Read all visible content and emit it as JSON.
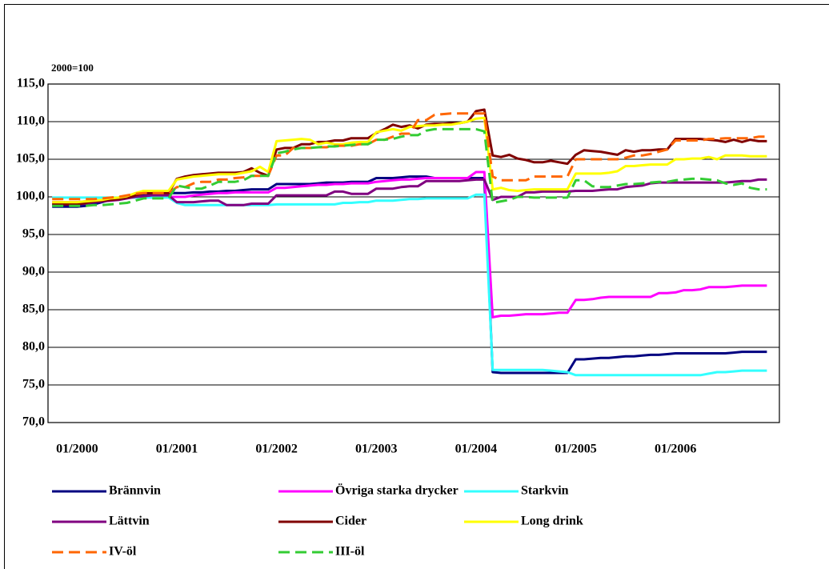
{
  "chart_data": {
    "type": "line",
    "axis_label": "2000=100",
    "categories": [
      null,
      null,
      null,
      "01/2000",
      null,
      null,
      null,
      null,
      null,
      null,
      null,
      null,
      null,
      null,
      null,
      "01/2001",
      null,
      null,
      null,
      null,
      null,
      null,
      null,
      null,
      null,
      null,
      null,
      "01/2002",
      null,
      null,
      null,
      null,
      null,
      null,
      null,
      null,
      null,
      null,
      null,
      "01/2003",
      null,
      null,
      null,
      null,
      null,
      null,
      null,
      null,
      null,
      null,
      null,
      "01/2004",
      null,
      null,
      null,
      null,
      null,
      null,
      null,
      null,
      null,
      null,
      null,
      "01/2005",
      null,
      null,
      null,
      null,
      null,
      null,
      null,
      null,
      null,
      null,
      null,
      "01/2006",
      null,
      null,
      null,
      null,
      null,
      null,
      null,
      null,
      null,
      null,
      null
    ],
    "ylim": [
      70,
      115
    ],
    "yticks": [
      {
        "value": 70,
        "label": "70,0"
      },
      {
        "value": 75,
        "label": "75,0"
      },
      {
        "value": 80,
        "label": "80,0"
      },
      {
        "value": 85,
        "label": "85,0"
      },
      {
        "value": 90,
        "label": "90,0"
      },
      {
        "value": 95,
        "label": "95,0"
      },
      {
        "value": 100,
        "label": "100,0"
      },
      {
        "value": 105,
        "label": "105,0"
      },
      {
        "value": 110,
        "label": "110,0"
      },
      {
        "value": 115,
        "label": "115,0"
      }
    ],
    "grid": true,
    "series": [
      {
        "name": "Brännvin",
        "color": "#000080",
        "style": "solid",
        "values": [
          98.7,
          98.7,
          98.7,
          98.7,
          98.8,
          99.0,
          99.3,
          99.6,
          99.9,
          100.1,
          100.2,
          100.3,
          100.4,
          100.5,
          100.5,
          100.5,
          100.5,
          100.6,
          100.6,
          100.7,
          100.7,
          100.8,
          100.8,
          100.9,
          101.0,
          101.0,
          101.0,
          101.7,
          101.7,
          101.7,
          101.7,
          101.7,
          101.8,
          101.9,
          101.9,
          101.9,
          102.0,
          102.0,
          102.0,
          102.5,
          102.5,
          102.5,
          102.6,
          102.7,
          102.7,
          102.7,
          102.5,
          102.5,
          102.5,
          102.5,
          102.5,
          102.5,
          102.5,
          76.7,
          76.6,
          76.6,
          76.6,
          76.6,
          76.6,
          76.6,
          76.6,
          76.6,
          76.6,
          78.4,
          78.4,
          78.5,
          78.6,
          78.6,
          78.7,
          78.8,
          78.8,
          78.9,
          79.0,
          79.0,
          79.1,
          79.2,
          79.2,
          79.2,
          79.2,
          79.2,
          79.2,
          79.2,
          79.3,
          79.4,
          79.4,
          79.4,
          79.4
        ]
      },
      {
        "name": "Övriga starka drycker",
        "color": "#ff00ff",
        "style": "solid",
        "values": [
          99.3,
          99.3,
          99.3,
          99.3,
          99.4,
          99.5,
          99.6,
          99.7,
          99.8,
          99.9,
          100.0,
          100.0,
          100.0,
          100.0,
          100.0,
          100.0,
          100.0,
          100.2,
          100.3,
          100.4,
          100.5,
          100.5,
          100.6,
          100.6,
          100.6,
          100.6,
          100.6,
          101.2,
          101.2,
          101.3,
          101.4,
          101.5,
          101.6,
          101.6,
          101.7,
          101.7,
          101.8,
          101.8,
          101.8,
          102.0,
          102.1,
          102.2,
          102.3,
          102.3,
          102.4,
          102.5,
          102.5,
          102.5,
          102.5,
          102.5,
          102.5,
          103.3,
          103.3,
          84.0,
          84.2,
          84.2,
          84.3,
          84.4,
          84.4,
          84.4,
          84.5,
          84.6,
          84.6,
          86.3,
          86.3,
          86.4,
          86.6,
          86.7,
          86.7,
          86.7,
          86.7,
          86.7,
          86.7,
          87.2,
          87.2,
          87.3,
          87.6,
          87.6,
          87.7,
          88.0,
          88.0,
          88.0,
          88.1,
          88.2,
          88.2,
          88.2,
          88.2
        ]
      },
      {
        "name": "Starkvin",
        "color": "#33ffff",
        "style": "solid",
        "values": [
          99.9,
          99.9,
          99.9,
          99.9,
          99.9,
          99.9,
          99.9,
          99.9,
          99.9,
          99.9,
          99.9,
          99.9,
          99.9,
          99.9,
          99.9,
          99.2,
          98.9,
          98.9,
          98.9,
          98.9,
          98.9,
          98.9,
          98.9,
          98.9,
          98.9,
          98.9,
          98.9,
          99.0,
          99.0,
          99.0,
          99.0,
          99.0,
          99.0,
          99.0,
          99.0,
          99.2,
          99.2,
          99.3,
          99.3,
          99.5,
          99.5,
          99.5,
          99.6,
          99.7,
          99.7,
          99.8,
          99.8,
          99.8,
          99.8,
          99.8,
          99.8,
          100.3,
          100.3,
          77.0,
          77.0,
          77.0,
          77.0,
          77.0,
          77.0,
          77.0,
          76.9,
          76.8,
          76.7,
          76.3,
          76.3,
          76.3,
          76.3,
          76.3,
          76.3,
          76.3,
          76.3,
          76.3,
          76.3,
          76.3,
          76.3,
          76.3,
          76.3,
          76.3,
          76.3,
          76.5,
          76.7,
          76.7,
          76.8,
          76.9,
          76.9,
          76.9,
          76.9
        ]
      },
      {
        "name": "Lättvin",
        "color": "#800080",
        "style": "solid",
        "values": [
          99.0,
          99.0,
          99.0,
          99.0,
          99.1,
          99.3,
          99.4,
          99.5,
          99.6,
          99.8,
          100.0,
          100.1,
          100.2,
          100.2,
          100.2,
          99.3,
          99.3,
          99.3,
          99.4,
          99.5,
          99.5,
          98.9,
          98.9,
          98.9,
          99.1,
          99.1,
          99.1,
          100.2,
          100.2,
          100.2,
          100.2,
          100.2,
          100.2,
          100.2,
          100.7,
          100.7,
          100.4,
          100.4,
          100.4,
          101.1,
          101.1,
          101.1,
          101.3,
          101.4,
          101.4,
          102.1,
          102.1,
          102.1,
          102.1,
          102.1,
          102.2,
          102.3,
          102.3,
          99.6,
          100.0,
          100.0,
          100.0,
          100.6,
          100.6,
          100.7,
          100.7,
          100.7,
          100.7,
          100.8,
          100.8,
          100.8,
          100.9,
          101.0,
          101.0,
          101.3,
          101.4,
          101.5,
          101.8,
          101.9,
          101.9,
          101.9,
          101.9,
          101.9,
          101.9,
          101.9,
          101.9,
          101.9,
          102.0,
          102.1,
          102.1,
          102.3,
          102.3
        ]
      },
      {
        "name": "Cider",
        "color": "#800000",
        "style": "solid",
        "values": [
          99.0,
          99.0,
          99.0,
          99.0,
          99.2,
          99.4,
          99.5,
          99.6,
          99.7,
          99.9,
          100.2,
          100.5,
          100.5,
          100.5,
          100.5,
          102.4,
          102.7,
          102.9,
          103.0,
          103.1,
          103.2,
          103.2,
          103.2,
          103.3,
          103.8,
          103.2,
          102.8,
          106.3,
          106.5,
          106.5,
          107.0,
          107.0,
          107.3,
          107.3,
          107.5,
          107.5,
          107.8,
          107.8,
          107.8,
          108.5,
          109.0,
          109.6,
          109.3,
          109.5,
          109.1,
          109.6,
          109.7,
          109.7,
          109.8,
          109.8,
          110.0,
          111.4,
          111.6,
          105.5,
          105.3,
          105.6,
          105.1,
          104.9,
          104.6,
          104.6,
          104.8,
          104.6,
          104.4,
          105.6,
          106.2,
          106.1,
          106.0,
          105.8,
          105.6,
          106.2,
          106.0,
          106.2,
          106.2,
          106.3,
          106.3,
          107.7,
          107.7,
          107.7,
          107.7,
          107.6,
          107.5,
          107.3,
          107.6,
          107.3,
          107.6,
          107.4,
          107.4
        ]
      },
      {
        "name": "Long drink",
        "color": "#ffff00",
        "style": "solid",
        "values": [
          99.3,
          99.3,
          99.3,
          99.3,
          99.4,
          99.5,
          99.6,
          99.8,
          99.9,
          100.1,
          100.5,
          100.8,
          100.8,
          100.8,
          100.8,
          102.3,
          102.5,
          102.7,
          102.8,
          102.9,
          103.0,
          103.0,
          103.0,
          103.2,
          103.4,
          104.0,
          103.3,
          107.4,
          107.5,
          107.6,
          107.7,
          107.6,
          107.0,
          107.2,
          107.0,
          107.0,
          107.2,
          107.3,
          107.3,
          108.6,
          108.8,
          109.0,
          108.8,
          109.3,
          109.4,
          109.5,
          109.5,
          109.6,
          109.6,
          109.8,
          110.0,
          110.4,
          110.5,
          101.0,
          101.2,
          100.9,
          100.8,
          100.9,
          101.0,
          101.0,
          101.0,
          101.0,
          101.0,
          103.1,
          103.1,
          103.1,
          103.1,
          103.2,
          103.4,
          104.1,
          104.1,
          104.2,
          104.3,
          104.3,
          104.3,
          105.0,
          105.0,
          105.1,
          105.1,
          105.3,
          105.0,
          105.5,
          105.5,
          105.5,
          105.4,
          105.4,
          105.4
        ]
      },
      {
        "name": "IV-öl",
        "color": "#ff6600",
        "style": "dashed",
        "values": [
          99.7,
          99.7,
          99.7,
          99.7,
          99.7,
          99.7,
          99.8,
          99.9,
          100.0,
          100.2,
          100.4,
          100.5,
          100.5,
          100.5,
          100.5,
          101.3,
          101.3,
          101.8,
          102.0,
          102.0,
          102.3,
          102.3,
          102.5,
          102.6,
          102.8,
          102.8,
          102.8,
          105.5,
          105.5,
          106.5,
          106.5,
          106.5,
          106.6,
          106.6,
          106.8,
          106.8,
          106.8,
          107.0,
          107.0,
          107.6,
          107.6,
          108.0,
          108.4,
          108.4,
          110.2,
          110.2,
          110.9,
          111.0,
          111.1,
          111.1,
          111.1,
          111.1,
          111.1,
          102.7,
          102.2,
          102.2,
          102.2,
          102.2,
          102.7,
          102.7,
          102.7,
          102.7,
          102.7,
          105.0,
          105.0,
          105.0,
          105.0,
          105.0,
          105.0,
          105.2,
          105.5,
          105.5,
          105.7,
          106.0,
          106.3,
          107.5,
          107.5,
          107.5,
          107.5,
          107.7,
          107.7,
          107.8,
          107.8,
          107.8,
          107.8,
          108.0,
          108.0
        ]
      },
      {
        "name": "III-öl",
        "color": "#33cc33",
        "style": "dashed",
        "values": [
          98.8,
          98.8,
          98.8,
          98.8,
          98.8,
          98.9,
          98.9,
          99.0,
          99.1,
          99.2,
          99.5,
          99.8,
          99.8,
          99.8,
          99.8,
          101.5,
          101.3,
          101.1,
          101.1,
          101.5,
          102.0,
          102.0,
          102.0,
          102.2,
          102.8,
          102.8,
          102.8,
          105.8,
          106.0,
          106.3,
          106.5,
          106.5,
          106.6,
          106.7,
          106.7,
          106.8,
          106.9,
          107.0,
          107.0,
          107.6,
          107.6,
          107.7,
          108.0,
          108.2,
          108.2,
          108.8,
          109.0,
          109.0,
          109.0,
          109.0,
          109.0,
          109.0,
          108.7,
          99.2,
          99.4,
          99.6,
          100.0,
          100.0,
          99.9,
          99.9,
          99.9,
          99.9,
          99.9,
          102.2,
          102.2,
          101.4,
          101.3,
          101.3,
          101.5,
          101.7,
          101.7,
          101.8,
          101.9,
          102.0,
          102.0,
          102.2,
          102.3,
          102.4,
          102.4,
          102.3,
          102.2,
          101.8,
          101.6,
          101.8,
          101.2,
          101.0,
          101.0
        ]
      }
    ]
  }
}
